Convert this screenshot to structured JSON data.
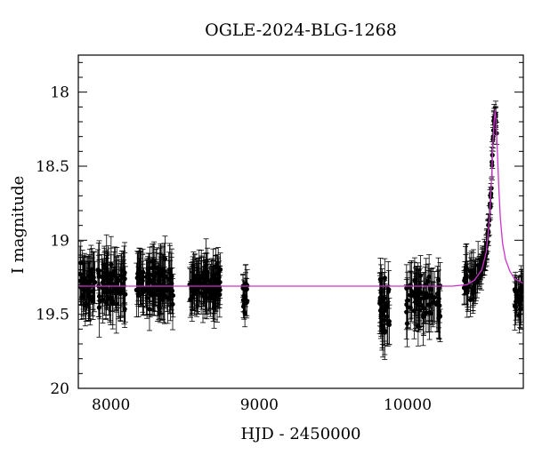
{
  "chart_data": {
    "type": "scatter",
    "title": "OGLE-2024-BLG-1268",
    "xlabel": "HJD - 2450000",
    "ylabel": "I magnitude",
    "xlim": [
      7780,
      10780
    ],
    "ylim": [
      20.0,
      17.75
    ],
    "y_inverted": true,
    "grid": false,
    "x_ticks": [
      8000,
      9000,
      10000
    ],
    "y_ticks": [
      18,
      18.5,
      19,
      19.5,
      20
    ],
    "colors": {
      "points": "#000000",
      "model": "#cc33cc",
      "frame": "#000000"
    },
    "model": {
      "name": "",
      "baseline_mag": 19.31,
      "peak_hjd": 10590,
      "peak_mag": 18.12,
      "sampled": [
        [
          7780,
          19.31
        ],
        [
          10300,
          19.31
        ],
        [
          10400,
          19.3
        ],
        [
          10450,
          19.27
        ],
        [
          10500,
          19.2
        ],
        [
          10530,
          19.08
        ],
        [
          10550,
          18.88
        ],
        [
          10565,
          18.6
        ],
        [
          10575,
          18.35
        ],
        [
          10583,
          18.2
        ],
        [
          10590,
          18.12
        ],
        [
          10597,
          18.2
        ],
        [
          10605,
          18.4
        ],
        [
          10615,
          18.65
        ],
        [
          10625,
          18.85
        ],
        [
          10640,
          19.02
        ],
        [
          10660,
          19.13
        ],
        [
          10690,
          19.21
        ],
        [
          10720,
          19.26
        ],
        [
          10780,
          19.29
        ]
      ]
    },
    "series": [
      {
        "segments": [
          {
            "range": [
              7790,
              8100
            ],
            "n": 120,
            "mag_mean": 19.3,
            "mag_sd": 0.1,
            "err": 0.16
          },
          {
            "range": [
              8170,
              8420
            ],
            "n": 110,
            "mag_mean": 19.3,
            "mag_sd": 0.1,
            "err": 0.15
          },
          {
            "range": [
              8530,
              8740
            ],
            "n": 110,
            "mag_mean": 19.29,
            "mag_sd": 0.08,
            "err": 0.14
          },
          {
            "range": [
              8890,
              8920
            ],
            "n": 16,
            "mag_mean": 19.35,
            "mag_sd": 0.07,
            "err": 0.1
          },
          {
            "range": [
              9810,
              9880
            ],
            "n": 40,
            "mag_mean": 19.45,
            "mag_sd": 0.13,
            "err": 0.16
          },
          {
            "range": [
              9980,
              10220
            ],
            "n": 75,
            "mag_mean": 19.4,
            "mag_sd": 0.1,
            "err": 0.16
          },
          {
            "range": [
              10380,
              10480
            ],
            "n": 35,
            "mag_mean": "model",
            "mag_sd": 0.07,
            "err": 0.13
          },
          {
            "range": [
              10480,
              10600
            ],
            "n": 60,
            "mag_mean": "model",
            "mag_sd": 0.04,
            "err": 0.08
          },
          {
            "range": [
              10720,
              10780
            ],
            "n": 22,
            "mag_mean": 19.38,
            "mag_sd": 0.08,
            "err": 0.13
          }
        ]
      }
    ]
  }
}
